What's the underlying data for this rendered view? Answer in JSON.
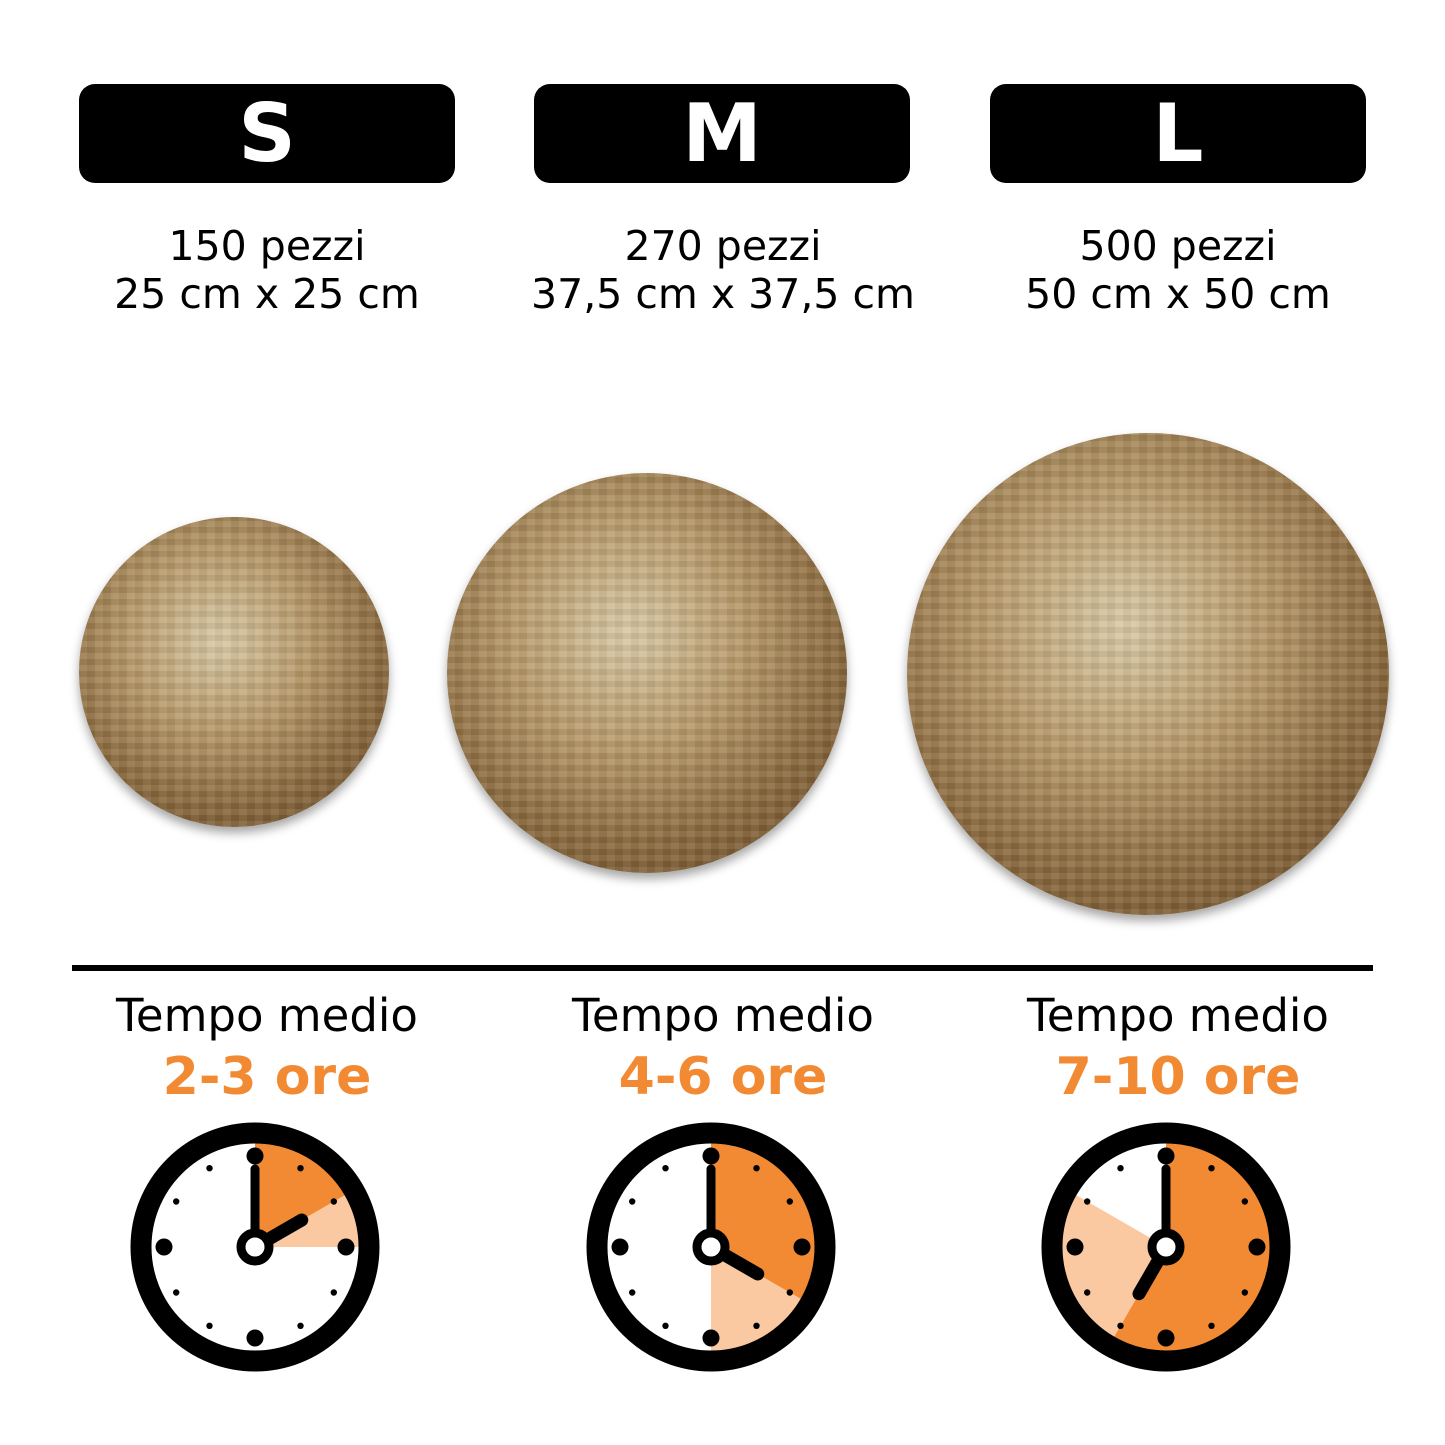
{
  "accent_color": "#f28a33",
  "accent_light_color": "#fbc9a1",
  "sizes": [
    {
      "badge": "S",
      "pieces": "150 pezzi",
      "dimensions": "25 cm x 25 cm",
      "time_label": "Tempo medio",
      "time_value": "2-3 ore",
      "clock": {
        "min_hours": 2,
        "max_hours": 3,
        "hour_hand": 2
      }
    },
    {
      "badge": "M",
      "pieces": "270 pezzi",
      "dimensions": "37,5 cm x 37,5 cm",
      "time_label": "Tempo medio",
      "time_value": "4-6 ore",
      "clock": {
        "min_hours": 4,
        "max_hours": 6,
        "hour_hand": 4
      }
    },
    {
      "badge": "L",
      "pieces": "500 pezzi",
      "dimensions": "50 cm x 50 cm",
      "time_label": "Tempo medio",
      "time_value": "7-10 ore",
      "clock": {
        "min_hours": 7,
        "max_hours": 10,
        "hour_hand": 7
      }
    }
  ]
}
